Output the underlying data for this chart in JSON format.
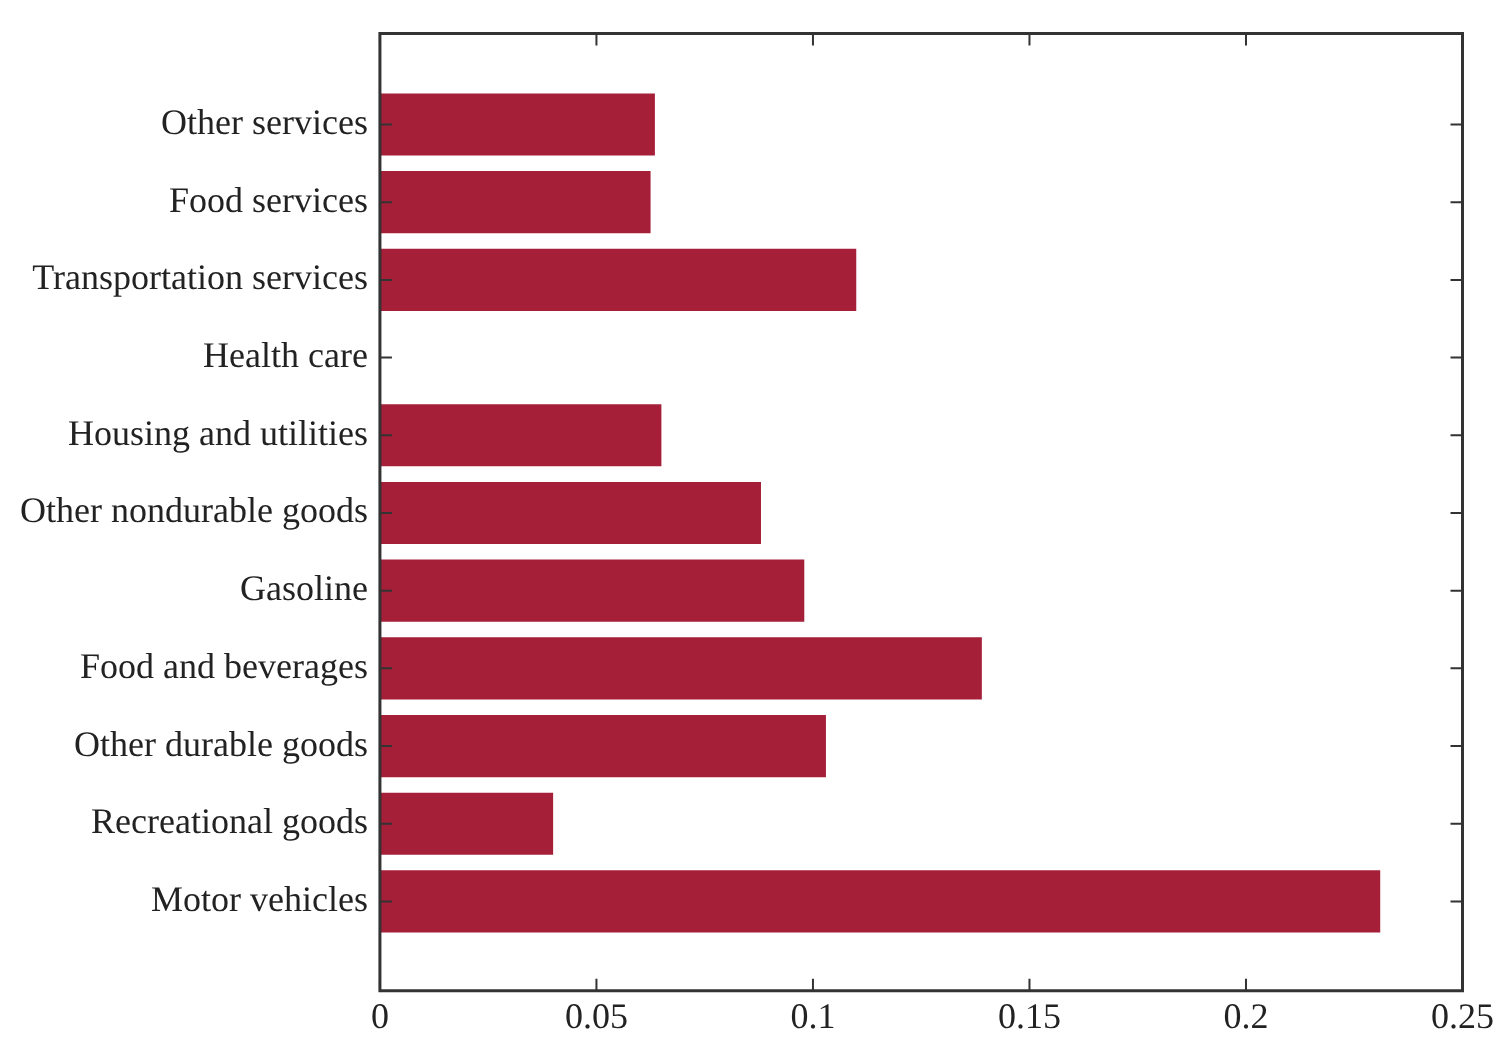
{
  "chart_data": {
    "type": "bar",
    "orientation": "horizontal",
    "categories": [
      "Other services",
      "Food services",
      "Transportation services",
      "Health care",
      "Housing and utilities",
      "Other nondurable goods",
      "Gasoline",
      "Food and beverages",
      "Other durable goods",
      "Recreational goods",
      "Motor vehicles"
    ],
    "values": [
      0.0635,
      0.0625,
      0.11,
      0,
      0.065,
      0.088,
      0.098,
      0.139,
      0.103,
      0.04,
      0.231
    ],
    "color": "#a61f38",
    "xlim": [
      0,
      0.25
    ],
    "xticks": [
      0,
      0.05,
      0.1,
      0.15,
      0.2,
      0.25
    ],
    "grid": false,
    "legend": false
  }
}
